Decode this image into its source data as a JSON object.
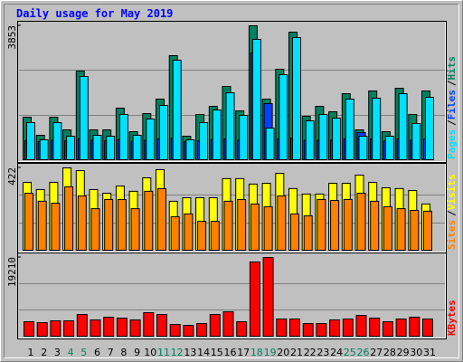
{
  "chart_data": [
    {
      "type": "bar",
      "title": "Daily usage for May 2019",
      "categories": [
        "1",
        "2",
        "3",
        "4",
        "5",
        "6",
        "7",
        "8",
        "9",
        "10",
        "11",
        "12",
        "13",
        "14",
        "15",
        "16",
        "17",
        "18",
        "19",
        "20",
        "21",
        "22",
        "23",
        "24",
        "25",
        "26",
        "27",
        "28",
        "29",
        "30",
        "31"
      ],
      "category_colors": [
        "#000000",
        "#000000",
        "#000000",
        "#00805c",
        "#00805c",
        "#000000",
        "#000000",
        "#000000",
        "#000000",
        "#000000",
        "#00805c",
        "#00805c",
        "#000000",
        "#000000",
        "#000000",
        "#000000",
        "#000000",
        "#00805c",
        "#00805c",
        "#000000",
        "#000000",
        "#000000",
        "#000000",
        "#000000",
        "#00805c",
        "#00805c",
        "#000000",
        "#000000",
        "#000000",
        "#000000",
        "#000000"
      ],
      "legend_separator": "/",
      "ylim": [
        0,
        3853
      ],
      "yticks": [
        3853
      ],
      "grid": true,
      "series": [
        {
          "name": "Hits",
          "color": "#00805c",
          "values": [
            1223,
            703,
            1223,
            859,
            2551,
            859,
            859,
            1484,
            807,
            1328,
            1744,
            2994,
            677,
            1302,
            1536,
            2108,
            1406,
            3853,
            1744,
            2603,
            3670,
            1249,
            1536,
            1380,
            1900,
            859,
            1978,
            807,
            2056,
            1302,
            1978
          ]
        },
        {
          "name": "Files",
          "color": "#0040ff",
          "values": [
            550,
            520,
            560,
            540,
            600,
            560,
            540,
            580,
            530,
            560,
            600,
            620,
            520,
            540,
            580,
            600,
            560,
            3072,
            1614,
            600,
            620,
            560,
            560,
            560,
            600,
            781,
            600,
            540,
            600,
            560,
            600
          ]
        },
        {
          "name": "Pages",
          "color": "#00e0ff",
          "values": [
            1067,
            573,
            1067,
            677,
            2395,
            703,
            677,
            1302,
            703,
            1171,
            1562,
            2863,
            573,
            1067,
            1432,
            1926,
            1275,
            3462,
            911,
            2447,
            3514,
            1119,
            1302,
            1197,
            1744,
            677,
            1770,
            677,
            1900,
            1041,
            1796
          ]
        }
      ]
    },
    {
      "type": "bar",
      "legend_separator": "/",
      "ylim": [
        0,
        422
      ],
      "yticks": [
        422
      ],
      "grid": true,
      "series": [
        {
          "name": "Visits",
          "color": "#ffff00",
          "values": [
            348,
            311,
            348,
            422,
            408,
            311,
            292,
            329,
            302,
            371,
            413,
            251,
            269,
            269,
            269,
            367,
            367,
            339,
            343,
            394,
            316,
            288,
            288,
            343,
            343,
            385,
            348,
            320,
            316,
            306,
            237
          ]
        },
        {
          "name": "Sites",
          "color": "#ff8000",
          "values": [
            292,
            251,
            241,
            325,
            278,
            213,
            260,
            260,
            213,
            302,
            316,
            172,
            186,
            148,
            148,
            251,
            260,
            237,
            223,
            278,
            186,
            176,
            260,
            255,
            260,
            292,
            251,
            223,
            213,
            204,
            200
          ]
        }
      ]
    },
    {
      "type": "bar",
      "ylim": [
        0,
        19210
      ],
      "yticks": [
        19210
      ],
      "grid": true,
      "series": [
        {
          "name": "KBytes",
          "color": "#ff0000",
          "values": [
            3536,
            3315,
            3757,
            3757,
            5304,
            3978,
            4641,
            4420,
            3978,
            5746,
            5304,
            2873,
            2652,
            3094,
            5304,
            5967,
            3536,
            18122,
            19210,
            4199,
            4199,
            3094,
            3094,
            3978,
            4199,
            5083,
            4420,
            3536,
            4199,
            4641,
            4199
          ]
        }
      ]
    }
  ]
}
